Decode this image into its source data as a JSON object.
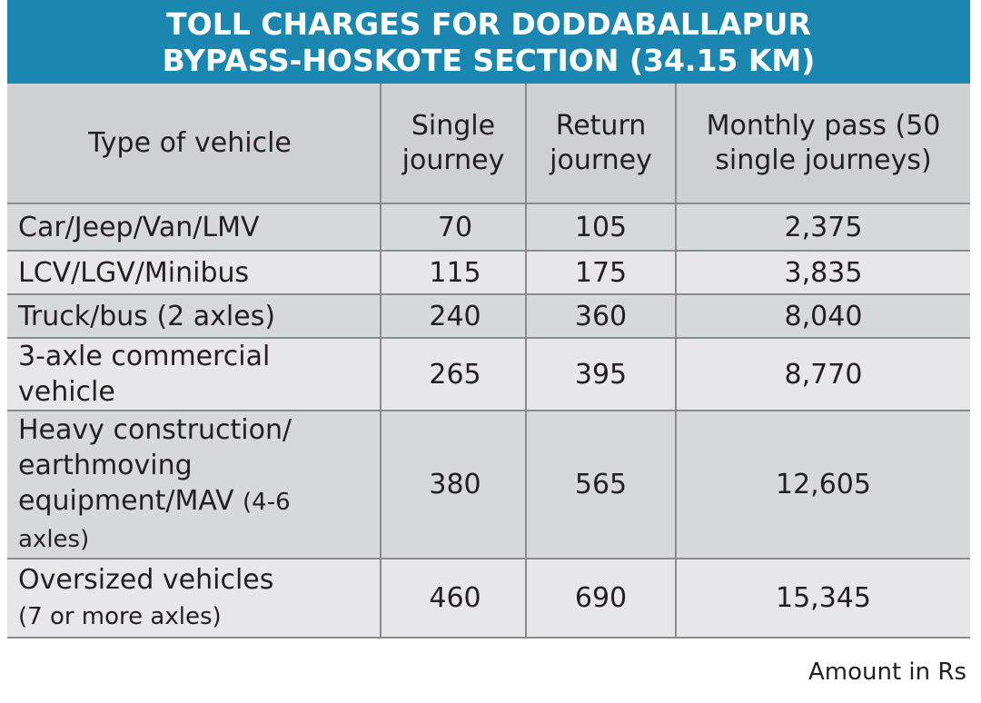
{
  "chart_data": {
    "type": "table",
    "title_line1": "TOLL CHARGES FOR DODDABALLAPUR",
    "title_line2": "BYPASS-HOSKOTE SECTION (34.15 KM)",
    "columns": [
      "Type of vehicle",
      [
        "Single",
        "journey"
      ],
      [
        "Return",
        "journey"
      ],
      [
        "Monthly pass (50",
        "single journeys)"
      ]
    ],
    "rows": [
      {
        "vehicle": [
          "Car/Jeep/Van/LMV"
        ],
        "vehicle_note": "",
        "single": "70",
        "return": "105",
        "monthly": "2,375"
      },
      {
        "vehicle": [
          "LCV/LGV/Minibus"
        ],
        "vehicle_note": "",
        "single": "115",
        "return": "175",
        "monthly": "3,835"
      },
      {
        "vehicle": [
          "Truck/bus (2 axles)"
        ],
        "vehicle_note": "",
        "single": "240",
        "return": "360",
        "monthly": "8,040"
      },
      {
        "vehicle": [
          "3-axle commercial",
          "vehicle"
        ],
        "vehicle_note": "",
        "single": "265",
        "return": "395",
        "monthly": "8,770"
      },
      {
        "vehicle": [
          "Heavy construction/",
          "earthmoving",
          "equipment/MAV"
        ],
        "vehicle_note": "(4-6",
        "vehicle_note2": "axles)",
        "single": "380",
        "return": "565",
        "monthly": "12,605"
      },
      {
        "vehicle": [
          "Oversized vehicles"
        ],
        "vehicle_note": "(7 or more axles)",
        "single": "460",
        "return": "690",
        "monthly": "15,345"
      }
    ],
    "footnote": "Amount in Rs"
  }
}
